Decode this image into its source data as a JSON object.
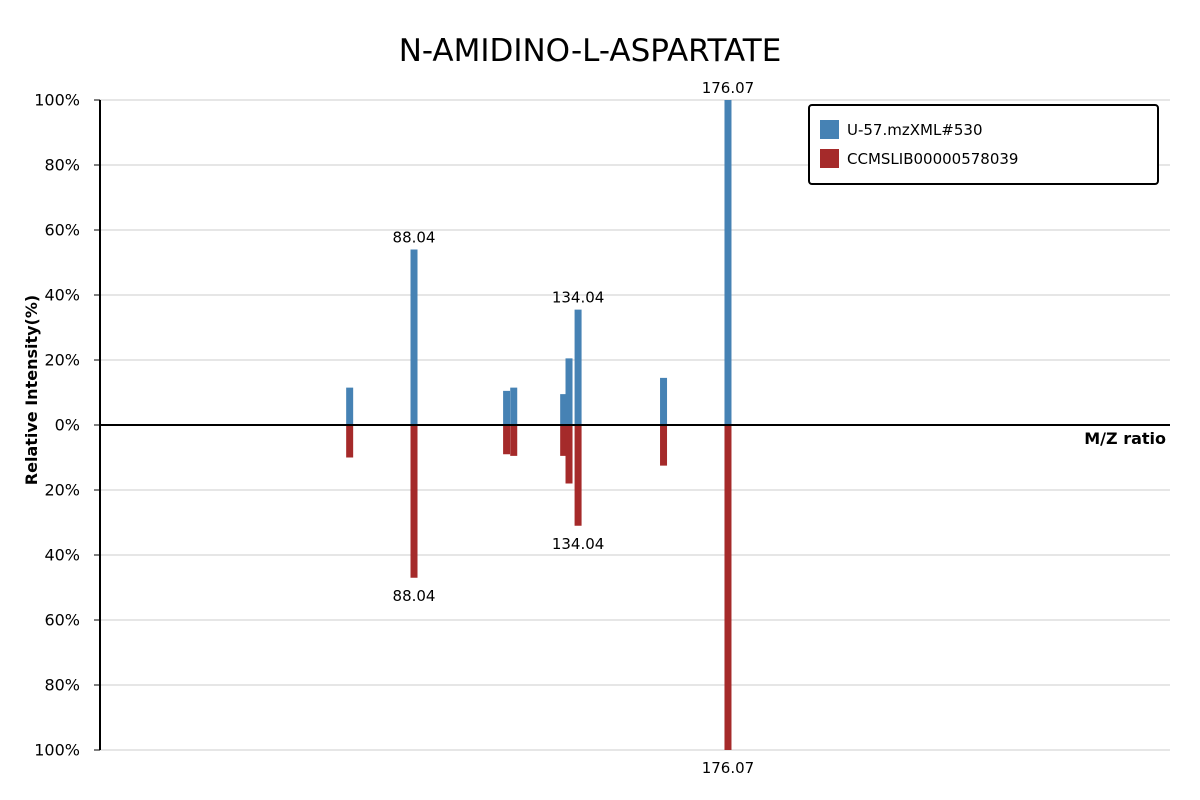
{
  "chart_data": {
    "type": "bar",
    "title": "N-AMIDINO-L-ASPARTATE",
    "xlabel": "M/Z ratio",
    "ylabel": "Relative Intensity(%)",
    "ylim": [
      -100,
      100
    ],
    "y_ticks": [
      {
        "value": 100,
        "label": "100%"
      },
      {
        "value": 80,
        "label": "80%"
      },
      {
        "value": 60,
        "label": "60%"
      },
      {
        "value": 40,
        "label": "40%"
      },
      {
        "value": 20,
        "label": "20%"
      },
      {
        "value": 0,
        "label": "0%"
      },
      {
        "value": -20,
        "label": "20%"
      },
      {
        "value": -40,
        "label": "40%"
      },
      {
        "value": -60,
        "label": "60%"
      },
      {
        "value": -80,
        "label": "80%"
      },
      {
        "value": -100,
        "label": "100%"
      }
    ],
    "grid": true,
    "legend_position": "top-right",
    "series": [
      {
        "name": "U-57.mzXML#530",
        "color": "#4682b4",
        "direction": "up",
        "peaks": [
          {
            "mz": 70.0,
            "intensity": 11.5
          },
          {
            "mz": 88.04,
            "intensity": 54,
            "label": "88.04"
          },
          {
            "mz": 114.0,
            "intensity": 10.5
          },
          {
            "mz": 116.0,
            "intensity": 11.5
          },
          {
            "mz": 130.0,
            "intensity": 9.5
          },
          {
            "mz": 131.5,
            "intensity": 20.5
          },
          {
            "mz": 134.04,
            "intensity": 35.5,
            "label": "134.04"
          },
          {
            "mz": 158.0,
            "intensity": 14.5
          },
          {
            "mz": 176.07,
            "intensity": 100,
            "label": "176.07"
          }
        ]
      },
      {
        "name": "CCMSLIB00000578039",
        "color": "#a52a2a",
        "direction": "down",
        "peaks": [
          {
            "mz": 70.0,
            "intensity": 10
          },
          {
            "mz": 88.04,
            "intensity": 47,
            "label": "88.04"
          },
          {
            "mz": 114.0,
            "intensity": 9
          },
          {
            "mz": 116.0,
            "intensity": 9.5
          },
          {
            "mz": 130.0,
            "intensity": 9.5
          },
          {
            "mz": 131.5,
            "intensity": 18
          },
          {
            "mz": 134.04,
            "intensity": 31,
            "label": "134.04"
          },
          {
            "mz": 158.0,
            "intensity": 12.5
          },
          {
            "mz": 176.07,
            "intensity": 100,
            "label": "176.07"
          }
        ]
      }
    ]
  }
}
